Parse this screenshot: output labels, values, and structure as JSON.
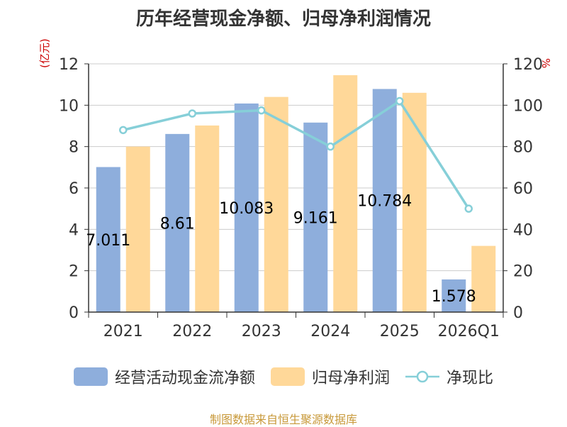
{
  "title": "历年经营现金净额、归母净利润情况",
  "unit_left": "(亿元)",
  "unit_right": "%",
  "legend": {
    "cash": "经营活动现金流净额",
    "profit": "归母净利润",
    "ratio": "净现比"
  },
  "footer": "制图数据来自恒生聚源数据库",
  "colors": {
    "cash": "#8eaedc",
    "profit": "#ffd899",
    "ratio": "#86cfd8"
  },
  "chart_data": {
    "type": "bar",
    "categories": [
      "2021",
      "2022",
      "2023",
      "2024",
      "2025",
      "2026Q1"
    ],
    "series": [
      {
        "name": "经营活动现金流净额",
        "axis": "left",
        "values": [
          7.011,
          8.61,
          10.083,
          9.161,
          10.784,
          1.578
        ]
      },
      {
        "name": "归母净利润",
        "axis": "left",
        "values": [
          8.0,
          9.02,
          10.4,
          11.45,
          10.6,
          3.2
        ]
      },
      {
        "name": "净现比",
        "type": "line",
        "axis": "right",
        "values": [
          88,
          96,
          97.5,
          80,
          102,
          50
        ]
      }
    ],
    "data_labels": [
      "7.011",
      "8.61",
      "10.083",
      "9.161",
      "10.784",
      "1.578"
    ],
    "y_left": {
      "min": 0,
      "max": 12,
      "ticks": [
        "0",
        "2",
        "4",
        "6",
        "8",
        "10",
        "12"
      ]
    },
    "y_right": {
      "min": 0,
      "max": 120,
      "ticks": [
        "0",
        "20",
        "40",
        "60",
        "80",
        "100",
        "120"
      ]
    },
    "grid": true,
    "legend_position": "bottom"
  }
}
